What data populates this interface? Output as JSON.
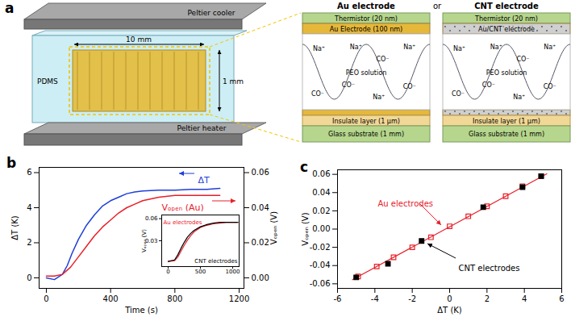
{
  "panel_a": {
    "label": "a",
    "device": {
      "top_plate": "Peltier cooler",
      "spacer": "PDMS",
      "length": "10 mm",
      "gap": "1 mm",
      "bottom_plate": "Peltier heater"
    },
    "separator": "or",
    "zooms": [
      {
        "title": "Au electrode",
        "top": [
          "Thermistor (20 nm)",
          "Au Electrode (100 nm)"
        ],
        "solution": "PEO solution",
        "ions": [
          "Na⁺",
          "Na⁺",
          "CO⁻",
          "Na⁺",
          "CO⁻",
          "CO⁻",
          "Na⁺",
          "CO⁻"
        ],
        "bottom": [
          "Insulate layer (1 μm)",
          "Glass substrate (1 mm)"
        ]
      },
      {
        "title": "CNT electrode",
        "top": [
          "Thermistor (20 nm)",
          "Au/CNT electrode"
        ],
        "solution": "PEO solution",
        "ions": [
          "Na⁺",
          "Na⁺",
          "CO⁻",
          "Na⁺",
          "CO⁻",
          "CO⁻",
          "Na⁺",
          "CO⁻"
        ],
        "bottom": [
          "Insulate layer (1 μm)",
          "Glass substrate (1 mm)"
        ]
      }
    ]
  },
  "chart_data": [
    {
      "type": "line",
      "title": "b",
      "x_label": "Time (s)",
      "y_label": "ΔT (K)",
      "y2_label": "Vₒₚₑₙ (V)",
      "xlim": [
        -45,
        1230
      ],
      "xticks": [
        0,
        400,
        800,
        1200
      ],
      "ylim": [
        -0.6,
        6.3
      ],
      "yticks": [
        0,
        2,
        4,
        6
      ],
      "y2lim": [
        -0.006,
        0.063
      ],
      "y2ticks": [
        {
          "value": 0,
          "label": "0.00"
        },
        {
          "value": 0.02,
          "label": "0.02"
        },
        {
          "value": 0.04,
          "label": "0.04"
        },
        {
          "value": 0.06,
          "label": "0.06"
        }
      ],
      "grid": false,
      "series": [
        {
          "name": "ΔT",
          "color": "#1f3fd8",
          "x": [
            0,
            50,
            100,
            130,
            160,
            200,
            250,
            300,
            350,
            400,
            450,
            500,
            550,
            600,
            700,
            800,
            900,
            1000,
            1080
          ],
          "values": [
            0,
            -0.1,
            0.2,
            0.7,
            1.4,
            2.2,
            3.0,
            3.6,
            4.1,
            4.4,
            4.6,
            4.8,
            4.9,
            4.95,
            5.0,
            5.0,
            5.05,
            5.05,
            5.1
          ]
        },
        {
          "name": "Vₒₚₑₙ (Au)",
          "color": "#e8202a",
          "axis": "y2",
          "x": [
            0,
            50,
            100,
            150,
            200,
            250,
            300,
            350,
            400,
            450,
            500,
            550,
            600,
            700,
            800,
            900,
            1000,
            1080
          ],
          "values": [
            0.001,
            0.001,
            0.002,
            0.006,
            0.012,
            0.018,
            0.024,
            0.029,
            0.033,
            0.037,
            0.04,
            0.042,
            0.044,
            0.046,
            0.047,
            0.047,
            0.047,
            0.047
          ]
        }
      ]
    },
    {
      "type": "line",
      "y_label": "Vₒₚₑₙ (V)",
      "xlim": [
        -100,
        1100
      ],
      "xticks": [
        0,
        500,
        1000
      ],
      "ylim": [
        -0.005,
        0.065
      ],
      "yticks": [
        0.03,
        0.06
      ],
      "grid": false,
      "series": [
        {
          "name": "Au electrodes",
          "color": "#e8202a",
          "x": [
            0,
            100,
            150,
            200,
            250,
            300,
            350,
            400,
            500,
            600,
            700,
            800,
            900,
            1000,
            1080
          ],
          "values": [
            0.002,
            0.003,
            0.008,
            0.016,
            0.024,
            0.031,
            0.037,
            0.042,
            0.048,
            0.051,
            0.053,
            0.054,
            0.055,
            0.055,
            0.055
          ]
        },
        {
          "name": "CNT electrodes",
          "color": "#000000",
          "x": [
            0,
            100,
            150,
            200,
            250,
            300,
            350,
            400,
            500,
            600,
            700,
            800,
            900,
            1000,
            1080
          ],
          "values": [
            0.002,
            0.004,
            0.011,
            0.02,
            0.028,
            0.035,
            0.04,
            0.044,
            0.049,
            0.052,
            0.054,
            0.055,
            0.055,
            0.055,
            0.055
          ]
        }
      ]
    },
    {
      "type": "scatter",
      "title": "c",
      "x_label": "ΔT (K)",
      "y_label": "Vₒₚₑₙ (V)",
      "xlim": [
        -6,
        6
      ],
      "xticks": [
        -6,
        -4,
        -2,
        0,
        2,
        4,
        6
      ],
      "ylim": [
        -0.065,
        0.065
      ],
      "yticks": [
        -0.06,
        -0.04,
        -0.02,
        {
          "value": 0,
          "label": "0.00"
        },
        0.02,
        0.04,
        0.06
      ],
      "grid": false,
      "series": [
        {
          "name": "Au electrodes",
          "color": "#e8202a",
          "marker": "square-open",
          "x": [
            -4.9,
            -3.9,
            -3.0,
            -2.0,
            -1.0,
            0,
            1.0,
            2.0,
            3.0,
            3.9,
            4.9
          ],
          "values": [
            -0.052,
            -0.041,
            -0.031,
            -0.02,
            -0.009,
            0.003,
            0.014,
            0.025,
            0.036,
            0.047,
            0.058
          ],
          "fit": {
            "x": [
              -5.2,
              5.2
            ],
            "values": [
              -0.0555,
              0.0605
            ]
          }
        },
        {
          "name": "CNT electrodes",
          "color": "#000000",
          "marker": "square",
          "x": [
            -5.0,
            -3.3,
            -1.5,
            1.8,
            3.9,
            4.9
          ],
          "values": [
            -0.053,
            -0.038,
            -0.013,
            0.024,
            0.046,
            0.058
          ]
        }
      ]
    }
  ]
}
